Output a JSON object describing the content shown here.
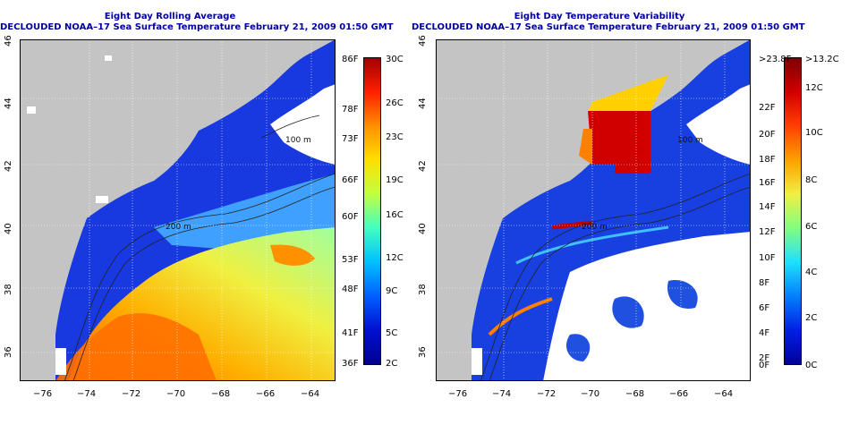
{
  "left_panel": {
    "title_line1": "Eight Day Rolling Average",
    "title_line2": "DECLOUDED NOAA–17 Sea Surface Temperature February 21, 2009 01:50 GMT",
    "contour_label_a": "200 m",
    "contour_label_b": "100 m",
    "colorbar_left_labels": [
      "86F",
      "78F",
      "73F",
      "66F",
      "60F",
      "53F",
      "48F",
      "41F",
      "36F"
    ],
    "colorbar_right_labels": [
      "30C",
      "26C",
      "23C",
      "19C",
      "16C",
      "12C",
      "9C",
      "5C",
      "2C"
    ],
    "colors": [
      "#ff0000",
      "#ff8000",
      "#ffd000",
      "#c0ff40",
      "#40ffc0",
      "#00c0ff",
      "#0060ff",
      "#0010d0",
      "#000090"
    ]
  },
  "right_panel": {
    "title_line1": "Eight Day Temperature Variability",
    "title_line2": "DECLOUDED NOAA–17 Sea Surface Temperature February 21, 2009 01:50 GMT",
    "contour_label_a": "200 m",
    "contour_label_b": "100 m",
    "colorbar_left_labels": [
      ">23.8F",
      "22F",
      "20F",
      "18F",
      "16F",
      "14F",
      "12F",
      "10F",
      "8F",
      "6F",
      "4F",
      "2F",
      "0F"
    ],
    "colorbar_right_labels": [
      ">13.2C",
      "12C",
      "10C",
      "8C",
      "6C",
      "4C",
      "2C",
      "0C"
    ]
  },
  "x_ticks": [
    "−76",
    "−74",
    "−72",
    "−70",
    "−68",
    "−66",
    "−64"
  ],
  "y_ticks": [
    "46",
    "44",
    "42",
    "40",
    "38",
    "36"
  ]
}
